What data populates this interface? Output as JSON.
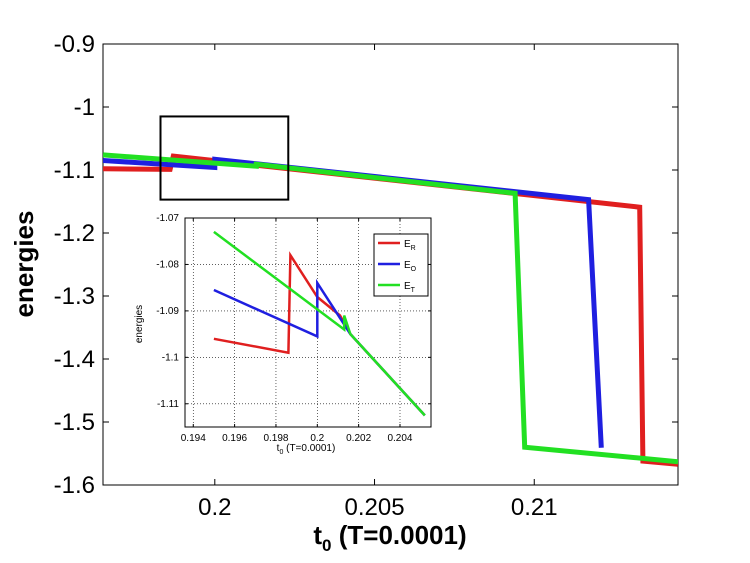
{
  "chart_data": [
    {
      "type": "line",
      "xlabel": {
        "base": "t",
        "sub": "0",
        "rest": " (T=0.0001)"
      },
      "ylabel": "energies",
      "xlim": [
        0.1965,
        0.2145
      ],
      "ylim": [
        -1.6,
        -0.9
      ],
      "xticks": [
        0.2,
        0.205,
        0.21
      ],
      "xtick_labels": [
        "0.2",
        "0.205",
        "0.21"
      ],
      "yticks": [
        -0.9,
        -1.0,
        -1.1,
        -1.2,
        -1.3,
        -1.4,
        -1.5,
        -1.6
      ],
      "ytick_labels": [
        "-0.9",
        "-1",
        "-1.1",
        "-1.2",
        "-1.3",
        "-1.4",
        "-1.5",
        "-1.6"
      ],
      "grid": false,
      "zoom_box": {
        "x": [
          0.1983,
          0.2023
        ],
        "y": [
          -1.147,
          -1.015
        ]
      },
      "series": [
        {
          "name": "E_R",
          "color": "#e01f1f",
          "x": [
            0.1965,
            0.1986,
            0.1987,
            0.2133,
            0.2134,
            0.2145
          ],
          "y": [
            -1.098,
            -1.099,
            -1.078,
            -1.159,
            -1.562,
            -1.567
          ]
        },
        {
          "name": "E_O",
          "color": "#1f1fe0",
          "x": [
            0.1965,
            0.2,
            0.2,
            0.2117,
            0.2121
          ],
          "y": [
            -1.085,
            -1.096,
            -1.083,
            -1.147,
            -1.541
          ]
        },
        {
          "name": "E_T",
          "color": "#22e022",
          "x": [
            0.1965,
            0.2013,
            0.2013,
            0.2094,
            0.2097,
            0.2145
          ],
          "y": [
            -1.076,
            -1.094,
            -1.091,
            -1.137,
            -1.54,
            -1.563
          ]
        }
      ]
    },
    {
      "type": "line",
      "xlabel": {
        "base": "t",
        "sub": "0",
        "rest": " (T=0.0001)"
      },
      "ylabel": "energies",
      "xlim": [
        0.1936,
        0.2055
      ],
      "ylim": [
        -1.115,
        -1.07
      ],
      "xticks": [
        0.194,
        0.196,
        0.198,
        0.2,
        0.202,
        0.204
      ],
      "xtick_labels": [
        "0.194",
        "0.196",
        "0.198",
        "0.2",
        "0.202",
        "0.204"
      ],
      "yticks": [
        -1.07,
        -1.08,
        -1.09,
        -1.1,
        -1.11
      ],
      "ytick_labels": [
        "-1.07",
        "-1.08",
        "-1.09",
        "-1.1",
        "-1.11"
      ],
      "grid": true,
      "legend": {
        "position": "top-right",
        "entries": [
          {
            "base": "E",
            "sub": "R",
            "color": "#e01f1f"
          },
          {
            "base": "E",
            "sub": "O",
            "color": "#1f1fe0"
          },
          {
            "base": "E",
            "sub": "T",
            "color": "#22e022"
          }
        ]
      },
      "series": [
        {
          "name": "E_R",
          "color": "#e01f1f",
          "x": [
            0.195,
            0.1986,
            0.1987,
            0.2,
            0.2011,
            0.2016,
            0.2052
          ],
          "y": [
            -1.096,
            -1.099,
            -1.078,
            -1.087,
            -1.091,
            -1.095,
            -1.1125
          ]
        },
        {
          "name": "E_O",
          "color": "#1f1fe0",
          "x": [
            0.195,
            0.2,
            0.2,
            0.2016,
            0.2052
          ],
          "y": [
            -1.0855,
            -1.0955,
            -1.084,
            -1.095,
            -1.1125
          ]
        },
        {
          "name": "E_T",
          "color": "#22e022",
          "x": [
            0.195,
            0.2013,
            0.2013,
            0.2016,
            0.2052
          ],
          "y": [
            -1.073,
            -1.094,
            -1.091,
            -1.095,
            -1.1125
          ]
        }
      ]
    }
  ]
}
